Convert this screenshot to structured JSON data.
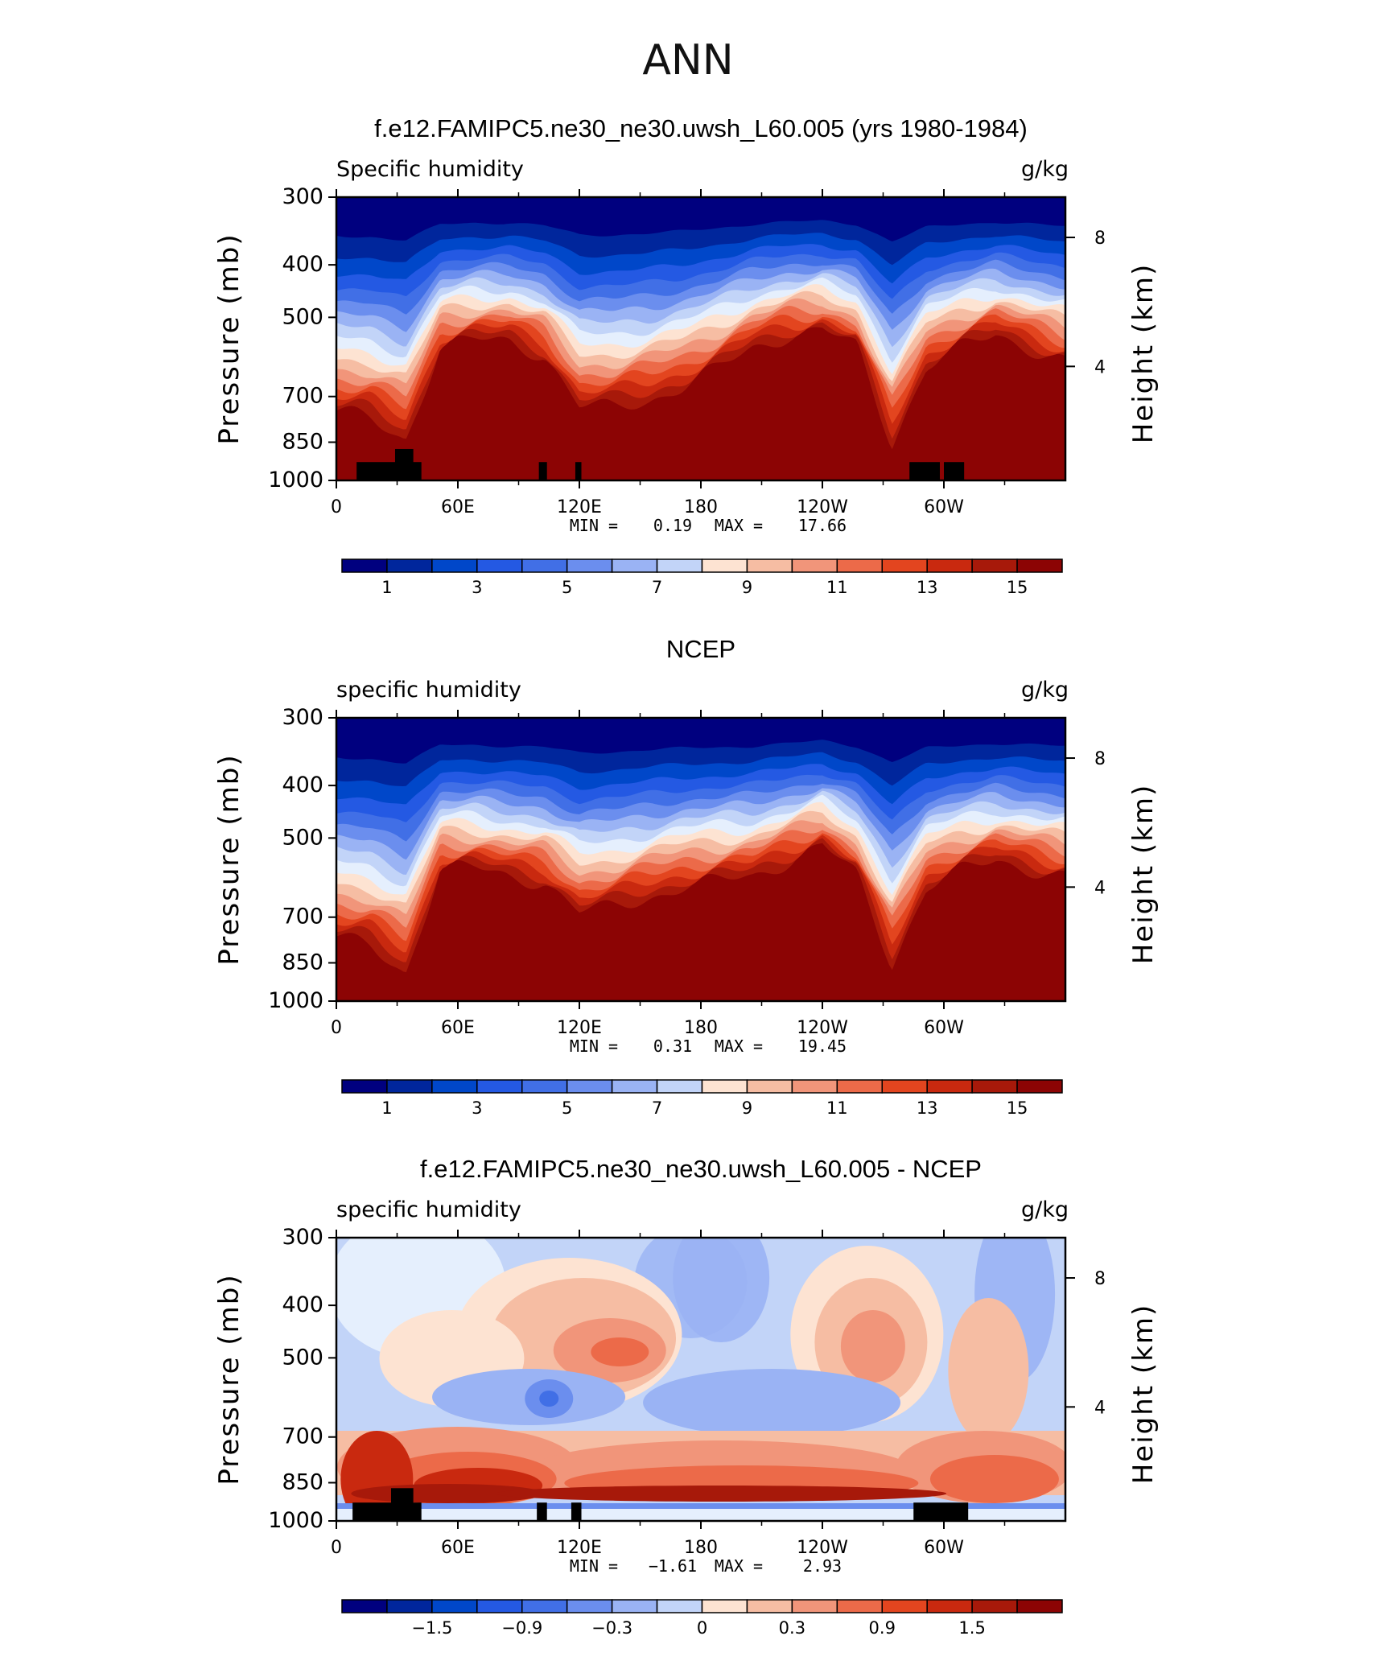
{
  "figure_title": "ANN",
  "panel_colors": [
    "#00007f",
    "#00269c",
    "#0047c9",
    "#2459e3",
    "#416fe6",
    "#6b8eee",
    "#9ab3f4",
    "#c2d4f8",
    "#e5effd",
    "#fde3d2",
    "#f6bda3",
    "#f1957a",
    "#ec6a49",
    "#e3451f",
    "#c9290f",
    "#a7190a",
    "#8c0404"
  ],
  "chart_data": [
    {
      "type": "heatmap",
      "title": "f.e12.FAMIPC5.ne30_ne30.uwsh_L60.005 (yrs 1980-1984)",
      "left_label": "Specific humidity",
      "right_label": "g/kg",
      "ylabel": "Pressure (mb)",
      "y2label": "Height (km)",
      "yticks": [
        "300",
        "400",
        "500",
        "700",
        "850",
        "1000"
      ],
      "y2ticks": [
        "8",
        "4"
      ],
      "xticks": [
        "0",
        "60E",
        "120E",
        "180",
        "120W",
        "60W"
      ],
      "ylim": [
        1000,
        300
      ],
      "min_label": "MIN =",
      "min_value": "0.19",
      "max_label": "MAX =",
      "max_value": "17.66",
      "colorbar_labels": [
        "1",
        "3",
        "5",
        "7",
        "9",
        "11",
        "13",
        "15"
      ],
      "profile": [
        0.8,
        0.82,
        0.9,
        0.55,
        0.52,
        0.52,
        0.58,
        0.78,
        0.78,
        0.75,
        0.7,
        0.63,
        0.55,
        0.5,
        0.48,
        0.55,
        0.92,
        0.62,
        0.55,
        0.5,
        0.55,
        0.6
      ],
      "topography": [
        {
          "lon": 10,
          "lon_end": 42,
          "p": 925
        },
        {
          "lon": 29,
          "lon_end": 38,
          "p": 875
        },
        {
          "lon": 100,
          "lon_end": 104,
          "p": 925
        },
        {
          "lon": 118,
          "lon_end": 121,
          "p": 925
        },
        {
          "lon": 283,
          "lon_end": 298,
          "p": 925
        },
        {
          "lon": 300,
          "lon_end": 310,
          "p": 925
        }
      ]
    },
    {
      "type": "heatmap",
      "title": "NCEP",
      "left_label": "specific humidity",
      "right_label": "g/kg",
      "ylabel": "Pressure (mb)",
      "y2label": "Height (km)",
      "yticks": [
        "300",
        "400",
        "500",
        "700",
        "850",
        "1000"
      ],
      "y2ticks": [
        "8",
        "4"
      ],
      "xticks": [
        "0",
        "60E",
        "120E",
        "180",
        "120W",
        "60W"
      ],
      "ylim": [
        1000,
        300
      ],
      "min_label": "MIN =",
      "min_value": "0.31",
      "max_label": "MAX =",
      "max_value": "19.45",
      "colorbar_labels": [
        "1",
        "3",
        "5",
        "7",
        "9",
        "11",
        "13",
        "15"
      ],
      "profile": [
        0.82,
        0.85,
        0.95,
        0.55,
        0.55,
        0.58,
        0.6,
        0.72,
        0.7,
        0.66,
        0.62,
        0.6,
        0.58,
        0.52,
        0.46,
        0.58,
        0.92,
        0.62,
        0.56,
        0.52,
        0.55,
        0.58
      ],
      "topography": []
    },
    {
      "type": "heatmap",
      "title": "f.e12.FAMIPC5.ne30_ne30.uwsh_L60.005 - NCEP",
      "left_label": "specific humidity",
      "right_label": "g/kg",
      "ylabel": "Pressure (mb)",
      "y2label": "Height (km)",
      "yticks": [
        "300",
        "400",
        "500",
        "700",
        "850",
        "1000"
      ],
      "y2ticks": [
        "8",
        "4"
      ],
      "xticks": [
        "0",
        "60E",
        "120E",
        "180",
        "120W",
        "60W"
      ],
      "ylim": [
        1000,
        300
      ],
      "min_label": "MIN =",
      "min_value": "−1.61",
      "max_label": "MAX =",
      "max_value": "2.93",
      "colorbar_labels": [
        "−1.5",
        "−0.9",
        "−0.3",
        "0",
        "0.3",
        "0.9",
        "1.5"
      ],
      "topography": [
        {
          "lon": 8,
          "lon_end": 42,
          "p": 925
        },
        {
          "lon": 27,
          "lon_end": 38,
          "p": 870
        },
        {
          "lon": 99,
          "lon_end": 104,
          "p": 925
        },
        {
          "lon": 116,
          "lon_end": 121,
          "p": 925
        },
        {
          "lon": 285,
          "lon_end": 312,
          "p": 925
        }
      ]
    }
  ]
}
